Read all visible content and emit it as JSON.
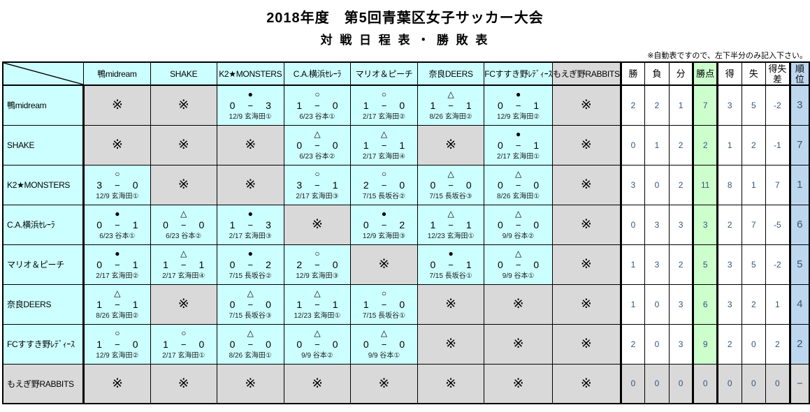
{
  "title": "2018年度　第5回青葉区女子サッカー大会",
  "subtitle": "対 戦 日 程 表 ・ 勝 敗 表",
  "note": "※自動表ですので、左下半分のみ記入下さい。",
  "na_mark": "※",
  "dash": "−",
  "colors": {
    "cell_cyan": "#CCFFFF",
    "cell_gray": "#D9D9D9",
    "points_green": "#CCFFCC",
    "rank_blue": "#BDD7EE",
    "stat_text": "#38547E"
  },
  "columns": {
    "teams": [
      "鴨midream",
      "SHAKE",
      "K2★MONSTERS",
      "C.A.横浜ｾﾚｰﾗ",
      "マリオ＆ピーチ",
      "奈良DEERS",
      "FCすすき野ﾚﾃﾞｨｰｽ",
      "もえぎ野RABBITS"
    ],
    "stats": [
      "勝",
      "負",
      "分",
      "勝点",
      "得",
      "失",
      "得失差",
      "順位"
    ]
  },
  "rows": [
    {
      "team": "鴨midream",
      "gray": false,
      "cells": [
        {
          "na": true
        },
        {
          "na": true
        },
        {
          "mark": "●",
          "score": [
            "0",
            "3"
          ],
          "date": "12/9 玄海田①"
        },
        {
          "mark": "○",
          "score": [
            "1",
            "0"
          ],
          "date": "6/23 谷本①"
        },
        {
          "mark": "○",
          "score": [
            "1",
            "0"
          ],
          "date": "2/17 玄海田②"
        },
        {
          "mark": "△",
          "score": [
            "1",
            "1"
          ],
          "date": "8/26 玄海田②"
        },
        {
          "mark": "●",
          "score": [
            "0",
            "1"
          ],
          "date": "12/9 玄海田②"
        },
        {
          "na": true
        }
      ],
      "stats": [
        "2",
        "2",
        "1",
        "7",
        "3",
        "5",
        "-2",
        "3"
      ]
    },
    {
      "team": "SHAKE",
      "gray": false,
      "cells": [
        {
          "na": true
        },
        {
          "na": true
        },
        {
          "na": true
        },
        {
          "mark": "△",
          "score": [
            "0",
            "0"
          ],
          "date": "6/23 谷本②"
        },
        {
          "mark": "△",
          "score": [
            "1",
            "1"
          ],
          "date": "2/17 玄海田④"
        },
        {
          "na": true
        },
        {
          "mark": "●",
          "score": [
            "0",
            "1"
          ],
          "date": "2/17 玄海田①"
        },
        {
          "na": true
        }
      ],
      "stats": [
        "0",
        "1",
        "2",
        "2",
        "1",
        "2",
        "-1",
        "7"
      ]
    },
    {
      "team": "K2★MONSTERS",
      "gray": false,
      "cells": [
        {
          "mark": "○",
          "score": [
            "3",
            "0"
          ],
          "date": "12/9 玄海田①"
        },
        {
          "na": true
        },
        {
          "na": true
        },
        {
          "mark": "○",
          "score": [
            "3",
            "1"
          ],
          "date": "2/17 玄海田③"
        },
        {
          "mark": "○",
          "score": [
            "2",
            "0"
          ],
          "date": "7/15 長坂谷②"
        },
        {
          "mark": "△",
          "score": [
            "0",
            "0"
          ],
          "date": "7/15 長坂谷③"
        },
        {
          "mark": "△",
          "score": [
            "0",
            "0"
          ],
          "date": "8/26 玄海田①"
        },
        {
          "na": true
        }
      ],
      "stats": [
        "3",
        "0",
        "2",
        "11",
        "8",
        "1",
        "7",
        "1"
      ]
    },
    {
      "team": "C.A.横浜ｾﾚｰﾗ",
      "gray": false,
      "cells": [
        {
          "mark": "●",
          "score": [
            "0",
            "1"
          ],
          "date": "6/23 谷本①"
        },
        {
          "mark": "△",
          "score": [
            "0",
            "0"
          ],
          "date": "6/23 谷本②"
        },
        {
          "mark": "●",
          "score": [
            "1",
            "3"
          ],
          "date": "2/17 玄海田③"
        },
        {
          "na": true
        },
        {
          "mark": "●",
          "score": [
            "0",
            "2"
          ],
          "date": "12/9 玄海田③"
        },
        {
          "mark": "△",
          "score": [
            "1",
            "1"
          ],
          "date": "12/23 玄海田①"
        },
        {
          "mark": "△",
          "score": [
            "0",
            "0"
          ],
          "date": "9/9 谷本②"
        },
        {
          "na": true
        }
      ],
      "stats": [
        "0",
        "3",
        "3",
        "3",
        "2",
        "7",
        "-5",
        "6"
      ]
    },
    {
      "team": "マリオ＆ピーチ",
      "gray": false,
      "cells": [
        {
          "mark": "●",
          "score": [
            "0",
            "1"
          ],
          "date": "2/17 玄海田②"
        },
        {
          "mark": "△",
          "score": [
            "1",
            "1"
          ],
          "date": "2/17 玄海田④"
        },
        {
          "mark": "●",
          "score": [
            "0",
            "2"
          ],
          "date": "7/15 長坂谷②"
        },
        {
          "mark": "○",
          "score": [
            "2",
            "0"
          ],
          "date": "12/9 玄海田③"
        },
        {
          "na": true
        },
        {
          "mark": "●",
          "score": [
            "0",
            "1"
          ],
          "date": "7/15 長坂谷①"
        },
        {
          "mark": "△",
          "score": [
            "0",
            "0"
          ],
          "date": "9/9 谷本①"
        },
        {
          "na": true
        }
      ],
      "stats": [
        "1",
        "3",
        "2",
        "5",
        "3",
        "5",
        "-2",
        "5"
      ]
    },
    {
      "team": "奈良DEERS",
      "gray": false,
      "cells": [
        {
          "mark": "△",
          "score": [
            "1",
            "1"
          ],
          "date": "8/26 玄海田②"
        },
        {
          "na": true
        },
        {
          "mark": "△",
          "score": [
            "0",
            "0"
          ],
          "date": "7/15 長坂谷③"
        },
        {
          "mark": "△",
          "score": [
            "1",
            "1"
          ],
          "date": "12/23 玄海田①"
        },
        {
          "mark": "○",
          "score": [
            "1",
            "0"
          ],
          "date": "7/15 長坂谷①"
        },
        {
          "na": true
        },
        {
          "na": true
        },
        {
          "na": true
        }
      ],
      "stats": [
        "1",
        "0",
        "3",
        "6",
        "3",
        "2",
        "1",
        "4"
      ]
    },
    {
      "team": "FCすすき野ﾚﾃﾞｨｰｽ",
      "gray": false,
      "cells": [
        {
          "mark": "○",
          "score": [
            "1",
            "0"
          ],
          "date": "12/9 玄海田②"
        },
        {
          "mark": "○",
          "score": [
            "1",
            "0"
          ],
          "date": "2/17 玄海田①"
        },
        {
          "mark": "△",
          "score": [
            "0",
            "0"
          ],
          "date": "8/26 玄海田①"
        },
        {
          "mark": "△",
          "score": [
            "0",
            "0"
          ],
          "date": "9/9 谷本②"
        },
        {
          "mark": "△",
          "score": [
            "0",
            "0"
          ],
          "date": "9/9 谷本①"
        },
        {
          "na": true
        },
        {
          "na": true
        },
        {
          "na": true
        }
      ],
      "stats": [
        "2",
        "0",
        "3",
        "9",
        "2",
        "0",
        "2",
        "2"
      ]
    },
    {
      "team": "もえぎ野RABBITS",
      "gray": true,
      "cells": [
        {
          "na": true
        },
        {
          "na": true
        },
        {
          "na": true
        },
        {
          "na": true
        },
        {
          "na": true
        },
        {
          "na": true
        },
        {
          "na": true
        },
        {
          "na": true
        }
      ],
      "stats": [
        "0",
        "0",
        "0",
        "0",
        "0",
        "0",
        "0",
        "−"
      ]
    }
  ]
}
